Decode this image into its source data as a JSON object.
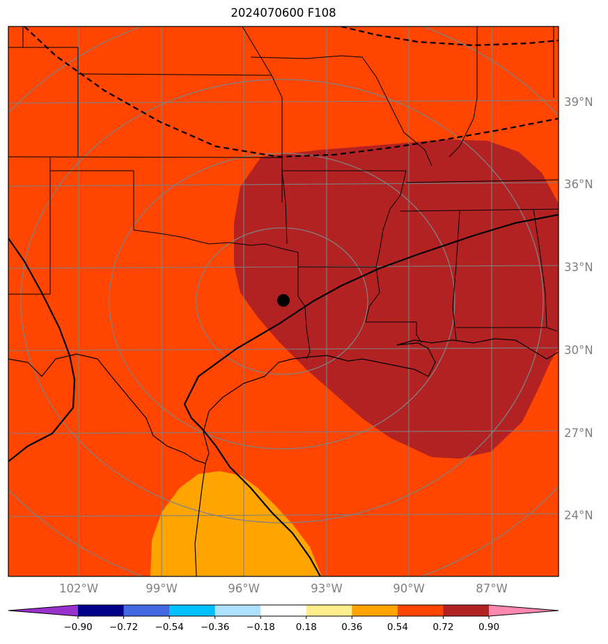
{
  "title": "2024070600 F108",
  "map": {
    "background_color": "#ff4500",
    "contour_colors": {
      "orange_0_54": "#ffa500",
      "darkred_0_72": "#b22222"
    },
    "lat_labels": [
      "39°N",
      "36°N",
      "33°N",
      "30°N",
      "27°N",
      "24°N"
    ],
    "lon_labels": [
      "102°W",
      "99°W",
      "96°W",
      "93°W",
      "90°W",
      "87°W"
    ],
    "marker": {
      "description": "storm-center",
      "color": "#000000"
    }
  },
  "colorbar": {
    "extend": "both",
    "colors": [
      "#9932cc",
      "#00008b",
      "#4169e1",
      "#00bfff",
      "#b0e0ff",
      "#ffffff",
      "#ffec8b",
      "#ffa500",
      "#ff4500",
      "#b22222",
      "#ff88b0"
    ],
    "ticks": [
      "−0.90",
      "−0.72",
      "−0.54",
      "−0.36",
      "−0.18",
      "0.18",
      "0.36",
      "0.54",
      "0.72",
      "0.90"
    ]
  }
}
